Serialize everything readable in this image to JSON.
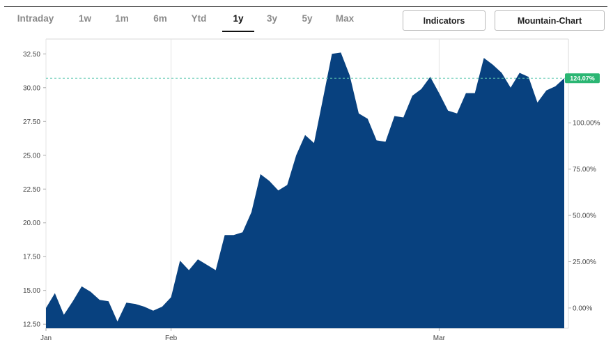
{
  "toolbar": {
    "ranges": [
      "Intraday",
      "1w",
      "1m",
      "6m",
      "Ytd",
      "1y",
      "3y",
      "5y",
      "Max"
    ],
    "active_range": "1y",
    "indicators_label": "Indicators",
    "chart_type_label": "Mountain-Chart"
  },
  "colors": {
    "area_fill": "#08417f",
    "badge": "#2bb673",
    "reference_line": "#5ec9b0"
  },
  "chart_data": {
    "type": "area",
    "x_start": "Jan",
    "x_labels": [
      {
        "label": "Jan",
        "index": 0
      },
      {
        "label": "Feb",
        "index": 14
      },
      {
        "label": "Mar",
        "index": 44
      }
    ],
    "x_max_index": 63,
    "values": [
      13.7,
      14.8,
      13.2,
      14.2,
      15.3,
      14.9,
      14.3,
      14.2,
      12.7,
      14.1,
      14.0,
      13.8,
      13.5,
      13.8,
      14.5,
      17.2,
      16.5,
      17.3,
      16.9,
      16.5,
      19.1,
      19.1,
      19.3,
      20.8,
      23.6,
      23.1,
      22.4,
      22.8,
      25.0,
      26.5,
      25.9,
      29.2,
      32.5,
      32.6,
      30.9,
      28.1,
      27.7,
      26.1,
      26.0,
      27.9,
      27.8,
      29.4,
      29.9,
      30.8,
      29.6,
      28.3,
      28.1,
      29.6,
      29.6,
      32.2,
      31.7,
      31.1,
      30.0,
      31.1,
      30.8,
      28.9,
      29.8,
      30.1,
      30.7
    ],
    "left_axis": {
      "ticks": [
        12.5,
        15.0,
        17.5,
        20.0,
        22.5,
        25.0,
        27.5,
        30.0,
        32.5
      ],
      "tick_labels": [
        "12.50",
        "15.00",
        "17.50",
        "20.00",
        "22.50",
        "25.00",
        "27.50",
        "30.00",
        "32.50"
      ],
      "ylim": [
        12.2,
        33.6
      ]
    },
    "right_axis": {
      "ticks": [
        0,
        25,
        50,
        75,
        100
      ],
      "tick_labels": [
        "0.00%",
        "25.00%",
        "50.00%",
        "75.00%",
        "100.00%"
      ],
      "base_value": 13.7
    },
    "reference_value": 30.7,
    "last_change_label": "124.07%",
    "grid": "vertical"
  }
}
